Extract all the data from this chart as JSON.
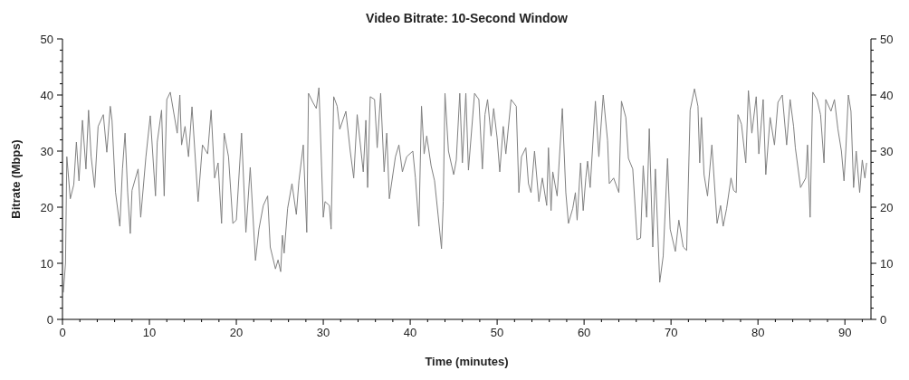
{
  "chart_data": {
    "type": "line",
    "title": "Video Bitrate: 10-Second Window",
    "xlabel": "Time (minutes)",
    "ylabel": "Bitrate (Mbps)",
    "xlim": [
      0,
      93
    ],
    "ylim": [
      0,
      50
    ],
    "y2lim": [
      0,
      50
    ],
    "xticks": [
      0,
      {
        "value": 2,
        "label": null
      },
      {
        "value": 4,
        "label": null
      },
      {
        "value": 6,
        "label": null
      },
      {
        "value": 8,
        "label": null
      },
      10,
      {
        "value": 12,
        "label": null
      },
      {
        "value": 14,
        "label": null
      },
      {
        "value": 16,
        "label": null
      },
      {
        "value": 18,
        "label": null
      },
      20,
      {
        "value": 22,
        "label": null
      },
      {
        "value": 24,
        "label": null
      },
      {
        "value": 26,
        "label": null
      },
      {
        "value": 28,
        "label": null
      },
      30,
      {
        "value": 32,
        "label": null
      },
      {
        "value": 34,
        "label": null
      },
      {
        "value": 36,
        "label": null
      },
      {
        "value": 38,
        "label": null
      },
      40,
      {
        "value": 42,
        "label": null
      },
      {
        "value": 44,
        "label": null
      },
      {
        "value": 46,
        "label": null
      },
      {
        "value": 48,
        "label": null
      },
      50,
      {
        "value": 52,
        "label": null
      },
      {
        "value": 54,
        "label": null
      },
      {
        "value": 56,
        "label": null
      },
      {
        "value": 58,
        "label": null
      },
      60,
      {
        "value": 62,
        "label": null
      },
      {
        "value": 64,
        "label": null
      },
      {
        "value": 66,
        "label": null
      },
      {
        "value": 68,
        "label": null
      },
      70,
      {
        "value": 72,
        "label": null
      },
      {
        "value": 74,
        "label": null
      },
      {
        "value": 76,
        "label": null
      },
      {
        "value": 78,
        "label": null
      },
      80,
      {
        "value": 82,
        "label": null
      },
      {
        "value": 84,
        "label": null
      },
      {
        "value": 86,
        "label": null
      },
      {
        "value": 88,
        "label": null
      },
      90,
      {
        "value": 92,
        "label": null
      }
    ],
    "yticks": [
      0,
      {
        "value": 2,
        "label": null
      },
      {
        "value": 4,
        "label": null
      },
      {
        "value": 6,
        "label": null
      },
      {
        "value": 8,
        "label": null
      },
      10,
      {
        "value": 12,
        "label": null
      },
      {
        "value": 14,
        "label": null
      },
      {
        "value": 16,
        "label": null
      },
      {
        "value": 18,
        "label": null
      },
      20,
      {
        "value": 22,
        "label": null
      },
      {
        "value": 24,
        "label": null
      },
      {
        "value": 26,
        "label": null
      },
      {
        "value": 28,
        "label": null
      },
      30,
      {
        "value": 32,
        "label": null
      },
      {
        "value": 34,
        "label": null
      },
      {
        "value": 36,
        "label": null
      },
      {
        "value": 38,
        "label": null
      },
      40,
      {
        "value": 42,
        "label": null
      },
      {
        "value": 44,
        "label": null
      },
      {
        "value": 46,
        "label": null
      },
      {
        "value": 48,
        "label": null
      },
      50
    ],
    "y2ticks": [
      0,
      {
        "value": 2,
        "label": null
      },
      {
        "value": 4,
        "label": null
      },
      {
        "value": 6,
        "label": null
      },
      {
        "value": 8,
        "label": null
      },
      10,
      {
        "value": 12,
        "label": null
      },
      {
        "value": 14,
        "label": null
      },
      {
        "value": 16,
        "label": null
      },
      {
        "value": 18,
        "label": null
      },
      20,
      {
        "value": 22,
        "label": null
      },
      {
        "value": 24,
        "label": null
      },
      {
        "value": 26,
        "label": null
      },
      {
        "value": 28,
        "label": null
      },
      30,
      {
        "value": 32,
        "label": null
      },
      {
        "value": 34,
        "label": null
      },
      {
        "value": 36,
        "label": null
      },
      {
        "value": 38,
        "label": null
      },
      40,
      {
        "value": 42,
        "label": null
      },
      {
        "value": 44,
        "label": null
      },
      {
        "value": 46,
        "label": null
      },
      {
        "value": 48,
        "label": null
      },
      50
    ],
    "grid": false,
    "series": [
      {
        "color": "#808080",
        "x": [
          0.1,
          0.35,
          0.5,
          0.9,
          1.3,
          1.6,
          1.9,
          2.3,
          2.7,
          3.0,
          3.3,
          3.7,
          4.1,
          4.7,
          5.1,
          5.5,
          5.7,
          6.1,
          6.6,
          6.9,
          7.2,
          7.5,
          7.8,
          8.0,
          8.7,
          9.0,
          9.6,
          10.1,
          10.7,
          10.9,
          11.4,
          11.7,
          12.0,
          12.4,
          13.2,
          13.5,
          13.7,
          14.1,
          14.5,
          14.9,
          15.6,
          16.1,
          16.7,
          17.1,
          17.5,
          17.9,
          18.3,
          18.6,
          19.1,
          19.6,
          20.0,
          20.6,
          21.1,
          21.6,
          22.2,
          22.6,
          23.1,
          23.6,
          23.9,
          24.5,
          24.8,
          25.1,
          25.3,
          25.5,
          25.9,
          26.4,
          26.9,
          27.2,
          27.7,
          28.1,
          28.3,
          28.8,
          29.2,
          29.5,
          29.8,
          30.0,
          30.2,
          30.7,
          30.9,
          31.2,
          31.6,
          31.9,
          32.6,
          33.1,
          33.5,
          33.9,
          34.6,
          34.9,
          35.1,
          35.4,
          35.9,
          36.2,
          36.6,
          37.0,
          37.3,
          37.6,
          38.3,
          38.7,
          39.1,
          39.6,
          40.3,
          40.6,
          41.0,
          41.3,
          41.6,
          41.9,
          42.4,
          42.8,
          43.2,
          43.6,
          43.8,
          44.0,
          44.4,
          45.0,
          45.3,
          45.7,
          46.0,
          46.4,
          46.7,
          47.4,
          47.9,
          48.3,
          48.6,
          48.9,
          49.3,
          49.6,
          50.0,
          50.3,
          50.7,
          51.0,
          51.6,
          52.2,
          52.5,
          52.8,
          53.3,
          53.6,
          53.9,
          54.3,
          54.8,
          55.2,
          55.7,
          55.9,
          56.2,
          56.4,
          56.9,
          57.5,
          57.9,
          58.2,
          58.7,
          59.0,
          59.2,
          59.6,
          59.9,
          60.2,
          60.4,
          60.7,
          61.3,
          61.7,
          62.2,
          62.7,
          62.9,
          63.4,
          64.0,
          64.3,
          64.8,
          65.1,
          65.6,
          66.1,
          66.5,
          66.8,
          67.2,
          67.5,
          67.9,
          68.2,
          68.7,
          69.1,
          69.6,
          69.9,
          70.5,
          70.9,
          71.4,
          71.8,
          72.2,
          72.7,
          73.1,
          73.3,
          73.5,
          73.8,
          74.2,
          74.7,
          75.3,
          75.7,
          76.0,
          76.4,
          76.9,
          77.2,
          77.5,
          77.7,
          78.1,
          78.6,
          78.9,
          79.3,
          79.8,
          80.1,
          80.6,
          80.9,
          81.4,
          81.9,
          82.3,
          82.8,
          83.3,
          83.7,
          84.1,
          84.3,
          84.9,
          85.5,
          85.7,
          86.0,
          86.3,
          86.8,
          87.2,
          87.6,
          87.8,
          88.4,
          88.8,
          89.2,
          89.6,
          89.9,
          90.1,
          90.4,
          90.7,
          91.0,
          91.3,
          91.7,
          92.0,
          92.3,
          92.5
        ],
        "values": [
          4.8,
          10,
          29,
          21.5,
          24,
          31.6,
          24.7,
          35.5,
          26.8,
          37.3,
          29,
          23.5,
          34.4,
          36.5,
          29.8,
          38,
          35.5,
          22.7,
          16.6,
          26.8,
          33.2,
          22.6,
          15.3,
          23,
          26.8,
          18.2,
          29,
          36.3,
          22,
          31.6,
          37.3,
          22,
          39.2,
          40.5,
          33.2,
          40,
          31.1,
          34.4,
          29,
          37.9,
          21,
          31.1,
          29.5,
          37.3,
          25.2,
          27.9,
          17.1,
          33.2,
          29,
          17.1,
          17.7,
          33.2,
          15.5,
          27.1,
          10.5,
          16.1,
          20.3,
          22,
          12.9,
          9,
          10.6,
          8.5,
          15,
          11.8,
          19.8,
          24.2,
          18.7,
          24.7,
          31.1,
          15.5,
          40.3,
          38.7,
          37.6,
          41.3,
          27.4,
          18.2,
          21,
          20.3,
          16.1,
          39.7,
          38,
          33.9,
          37.1,
          30,
          25.2,
          36.5,
          26.3,
          35.5,
          23.5,
          39.7,
          39.2,
          30.6,
          40.3,
          26.3,
          33.2,
          21.5,
          29,
          31.1,
          26.3,
          29,
          30,
          25.2,
          16.6,
          38,
          29.5,
          32.7,
          27.4,
          24.7,
          18.7,
          12.6,
          21,
          40.3,
          30,
          25.8,
          28.4,
          40.3,
          27.9,
          40.3,
          26.6,
          40.3,
          39.2,
          26.8,
          36.5,
          39.2,
          32.7,
          37.6,
          32.3,
          26.3,
          34.4,
          29.5,
          39.2,
          38,
          22.6,
          29,
          30.6,
          24.2,
          22.6,
          30,
          21,
          25.2,
          20.3,
          30.6,
          19.4,
          26.3,
          22,
          37.6,
          22.6,
          17.1,
          19.8,
          22.6,
          17.7,
          27.9,
          19.4,
          25.2,
          28.2,
          23.5,
          38.9,
          29,
          40,
          31.9,
          24.2,
          25.2,
          22.6,
          38.9,
          36,
          28.7,
          26.8,
          14.2,
          14.5,
          27.4,
          18.2,
          34,
          12.9,
          26.8,
          6.6,
          11.3,
          28.7,
          16.1,
          12.1,
          17.7,
          12.9,
          12.3,
          37.3,
          41.1,
          38,
          27.9,
          36,
          25.8,
          22,
          31.1,
          17.1,
          20.3,
          16.6,
          19.8,
          25.2,
          23,
          22.6,
          36.5,
          34.8,
          27.9,
          40.8,
          33.2,
          39.7,
          29.5,
          39.2,
          25.8,
          36,
          31.1,
          38.7,
          40,
          31.1,
          39.2,
          34.4,
          30.6,
          23.5,
          25.2,
          31.1,
          18.2,
          40.5,
          39.2,
          36.5,
          27.9,
          39.2,
          37.1,
          39.2,
          33.9,
          30,
          24.7,
          30,
          40,
          37.1,
          23.5,
          30,
          22.6,
          28.4,
          25.2,
          27.9
        ]
      }
    ]
  }
}
